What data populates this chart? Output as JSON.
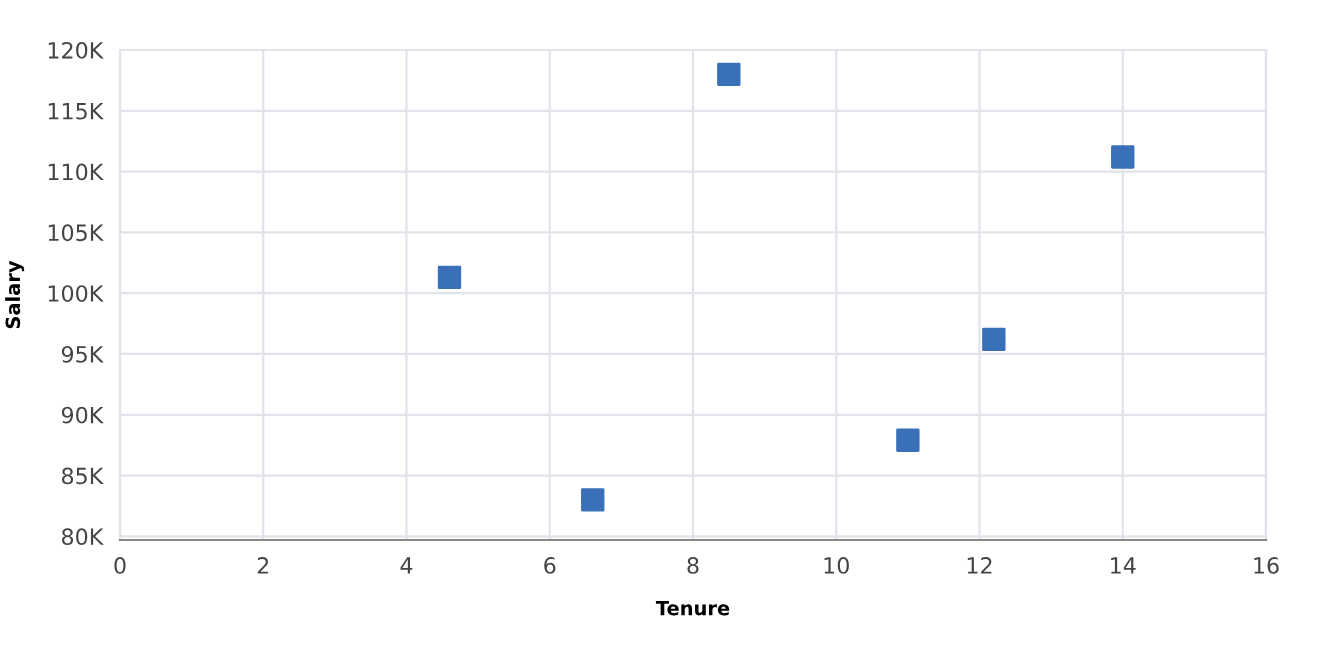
{
  "chart_data": {
    "type": "scatter",
    "xlabel": "Tenure",
    "ylabel": "Salary",
    "x": [
      4.6,
      6.6,
      8.5,
      11.0,
      12.2,
      14.0
    ],
    "series": [
      {
        "color": "#3a70b8",
        "values": [
          101.3,
          83.0,
          118.0,
          87.9,
          96.2,
          111.2
        ]
      }
    ],
    "xlim": [
      0,
      16
    ],
    "xticks": [
      0,
      2,
      4,
      6,
      8,
      10,
      12,
      14,
      16
    ],
    "ylim": [
      79.7,
      120
    ],
    "yticks": [
      {
        "value": 80,
        "label": "80K"
      },
      {
        "value": 85,
        "label": "85K"
      },
      {
        "value": 90,
        "label": "90K"
      },
      {
        "value": 95,
        "label": "95K"
      },
      {
        "value": 100,
        "label": "100K"
      },
      {
        "value": 105,
        "label": "105K"
      },
      {
        "value": 110,
        "label": "110K"
      },
      {
        "value": 115,
        "label": "115K"
      },
      {
        "value": 120,
        "label": "120K"
      }
    ],
    "grid": true,
    "marker": "square"
  }
}
